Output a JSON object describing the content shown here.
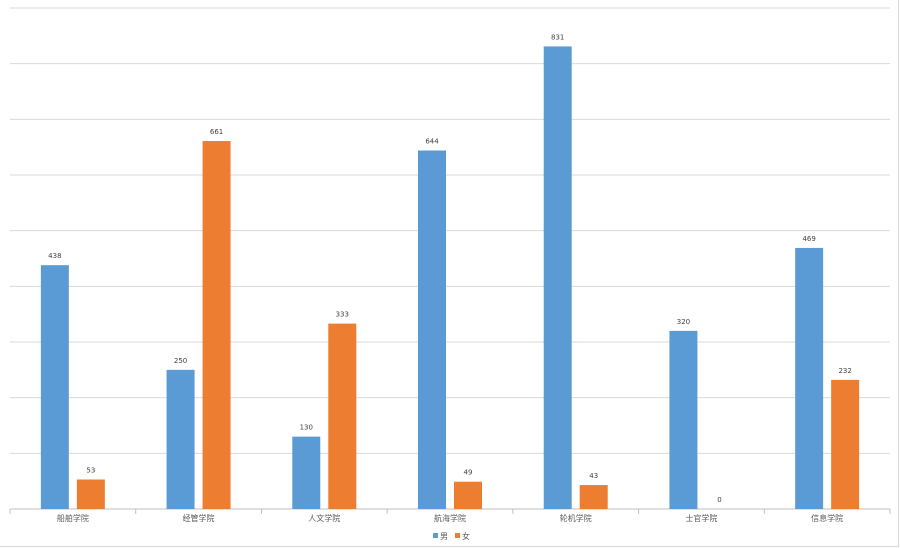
{
  "chart_data": {
    "type": "bar",
    "title": "",
    "xlabel": "",
    "ylabel": "",
    "categories": [
      "船舶学院",
      "经管学院",
      "人文学院",
      "航海学院",
      "轮机学院",
      "士官学院",
      "信息学院"
    ],
    "series": [
      {
        "name": "男",
        "color": "#5b9bd5",
        "values": [
          438,
          250,
          130,
          644,
          831,
          320,
          469
        ]
      },
      {
        "name": "女",
        "color": "#ed7d31",
        "values": [
          53,
          661,
          333,
          49,
          43,
          0,
          232
        ]
      }
    ],
    "ylim": [
      0,
      900
    ],
    "ytick_step": 100,
    "grid": true,
    "legend": "bottom"
  }
}
